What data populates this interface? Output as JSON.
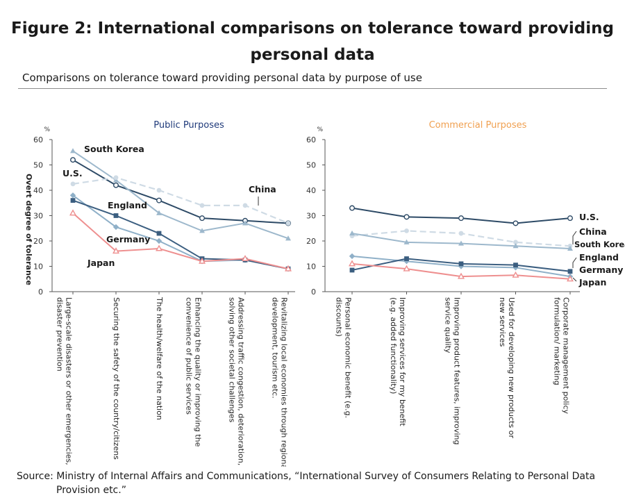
{
  "figure": {
    "title_line1": "Figure 2: International comparisons on tolerance toward providing",
    "title_line2": "personal data",
    "subtitle": "Comparisons on tolerance toward providing personal data by purpose of use",
    "source_line1": "Source: Ministry of Internal Affairs and Communications, “International Survey of Consumers Relating to Personal Data",
    "source_line2": "Provision etc.”"
  },
  "colors": {
    "public_title": "#1f3a7a",
    "commercial_title": "#f0a050",
    "U.S.": "#2d4a66",
    "England": "#8fb0c8",
    "Germany": "#3b5e80",
    "South Korea": "#9db8cc",
    "China": "#cfdbe5",
    "Japan": "#ee8f8f",
    "axis": "#555555"
  },
  "chart_data": [
    {
      "type": "line",
      "title": "Public Purposes",
      "ylabel": "Overt degree of tolerance",
      "yunit": "%",
      "ylim": [
        0,
        60
      ],
      "yticks": [
        0,
        10,
        20,
        30,
        40,
        50,
        60
      ],
      "grid": false,
      "categories": [
        "Large-scale disasters or other emergencies, disaster prevention",
        "Securing the safety of the country/citizens",
        "The health/welfare of the nation",
        "Enhancing the quality or improving the convenience of public services",
        "Addressing traffic congestion, deterioration, solving other societal challenges",
        "Revitalizing local economies through regional development, tourism etc."
      ],
      "series": [
        {
          "name": "U.S.",
          "marker": "circle-open",
          "values": [
            52,
            42,
            36,
            29,
            28,
            27
          ]
        },
        {
          "name": "South Korea",
          "marker": "triangle",
          "values": [
            55.5,
            44,
            31,
            24,
            27,
            21
          ]
        },
        {
          "name": "China",
          "marker": "circle",
          "dashed": true,
          "values": [
            42.5,
            45,
            40,
            34,
            34,
            27
          ]
        },
        {
          "name": "England",
          "marker": "diamond",
          "values": [
            38,
            25.5,
            20,
            12,
            12.5,
            9
          ]
        },
        {
          "name": "Germany",
          "marker": "square",
          "values": [
            36,
            30,
            23,
            13,
            12.5,
            9
          ]
        },
        {
          "name": "Japan",
          "marker": "triangle-open",
          "values": [
            31,
            16,
            17,
            12,
            13,
            9
          ]
        }
      ]
    },
    {
      "type": "line",
      "title": "Commercial Purposes",
      "ylabel": "",
      "yunit": "%",
      "ylim": [
        0,
        60
      ],
      "yticks": [
        0,
        10,
        20,
        30,
        40,
        50,
        60
      ],
      "grid": false,
      "categories": [
        "Personal economic benefit (e.g. discounts)",
        "Improving services for my benefit (e.g. added functionality)",
        "Improving product features, improving service quality",
        "Used for developing new products or new services",
        "Corporate management policy formulation/ marketing"
      ],
      "series": [
        {
          "name": "U.S.",
          "marker": "circle-open",
          "values": [
            33,
            29.5,
            29,
            27,
            29
          ]
        },
        {
          "name": "China",
          "marker": "circle",
          "dashed": true,
          "values": [
            22,
            24,
            23,
            19.5,
            18
          ]
        },
        {
          "name": "South Korea",
          "marker": "triangle",
          "values": [
            23,
            19.5,
            19,
            18,
            17
          ]
        },
        {
          "name": "England",
          "marker": "diamond",
          "values": [
            14,
            12,
            10,
            9.5,
            6
          ]
        },
        {
          "name": "Germany",
          "marker": "square",
          "values": [
            8.5,
            13,
            11,
            10.5,
            8
          ]
        },
        {
          "name": "Japan",
          "marker": "triangle-open",
          "values": [
            11,
            9,
            6,
            6.5,
            5
          ]
        }
      ]
    }
  ]
}
